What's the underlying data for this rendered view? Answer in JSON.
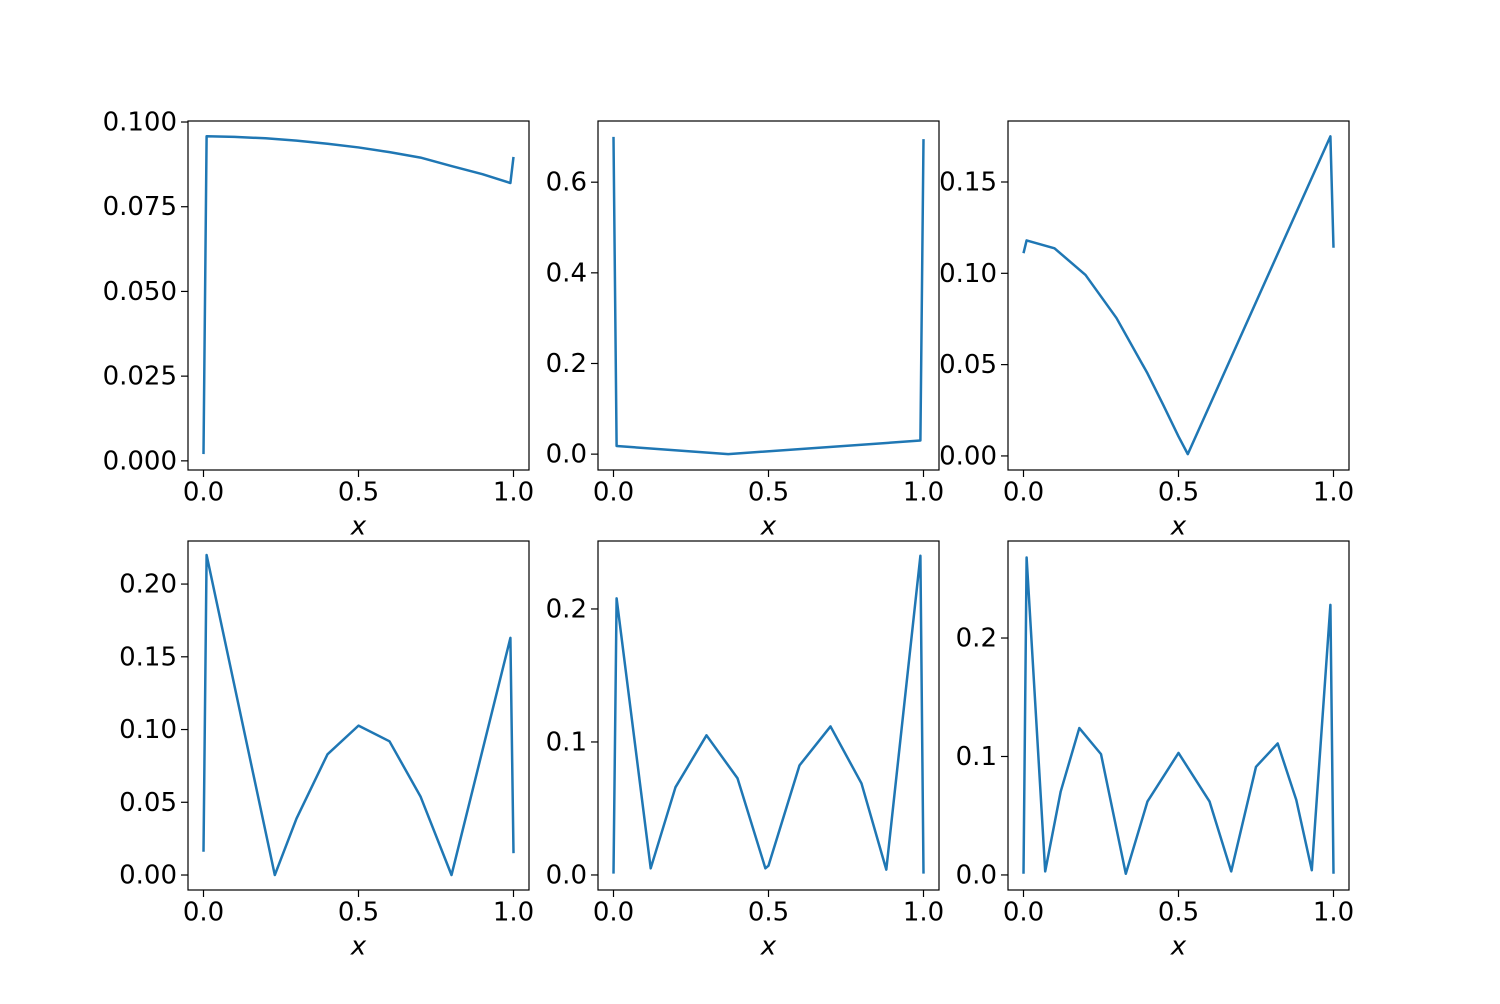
{
  "chart_data": [
    {
      "type": "line",
      "xlabel": "x",
      "color": "#1f77b4",
      "x": [
        0,
        0.01,
        0.1,
        0.2,
        0.3,
        0.4,
        0.5,
        0.6,
        0.7,
        0.8,
        0.9,
        0.99,
        1.0
      ],
      "values": [
        0.002,
        0.0958,
        0.0956,
        0.0952,
        0.0945,
        0.0936,
        0.0925,
        0.0911,
        0.0895,
        0.087,
        0.0846,
        0.082,
        0.0897
      ],
      "xlim": [
        -0.05,
        1.05
      ],
      "ylim": [
        -0.0027,
        0.1003
      ],
      "xticks": [
        {
          "value": 0,
          "label": "0.0"
        },
        {
          "value": 0.5,
          "label": "0.5"
        },
        {
          "value": 1,
          "label": "1.0"
        }
      ],
      "yticks": [
        {
          "value": 0,
          "label": "0.000"
        },
        {
          "value": 0.025,
          "label": "0.025"
        },
        {
          "value": 0.05,
          "label": "0.050"
        },
        {
          "value": 0.075,
          "label": "0.075"
        },
        {
          "value": 0.1,
          "label": "0.100"
        }
      ]
    },
    {
      "type": "line",
      "xlabel": "x",
      "color": "#1f77b4",
      "x": [
        0,
        0.01,
        0.37,
        0.99,
        1.0
      ],
      "values": [
        0.7,
        0.018,
        0.0,
        0.03,
        0.695
      ],
      "xlim": [
        -0.05,
        1.05
      ],
      "ylim": [
        -0.035,
        0.735
      ],
      "xticks": [
        {
          "value": 0,
          "label": "0.0"
        },
        {
          "value": 0.5,
          "label": "0.5"
        },
        {
          "value": 1,
          "label": "1.0"
        }
      ],
      "yticks": [
        {
          "value": 0,
          "label": "0.0"
        },
        0.2,
        0.4,
        0.6
      ]
    },
    {
      "type": "line",
      "xlabel": "x",
      "color": "#1f77b4",
      "x": [
        0,
        0.01,
        0.1,
        0.2,
        0.3,
        0.4,
        0.45,
        0.5,
        0.53,
        0.99,
        1.0
      ],
      "values": [
        0.111,
        0.118,
        0.1137,
        0.0991,
        0.0755,
        0.0452,
        0.0282,
        0.0107,
        0.001,
        0.175,
        0.114
      ],
      "xlim": [
        -0.05,
        1.05
      ],
      "ylim": [
        -0.0077,
        0.1834
      ],
      "xticks": [
        {
          "value": 0,
          "label": "0.0"
        },
        {
          "value": 0.5,
          "label": "0.5"
        },
        {
          "value": 1,
          "label": "1.0"
        }
      ],
      "yticks": [
        {
          "value": 0,
          "label": "0.00"
        },
        0.05,
        {
          "value": 0.1,
          "label": "0.10"
        },
        0.15
      ]
    },
    {
      "type": "line",
      "xlabel": "x",
      "color": "#1f77b4",
      "x": [
        0,
        0.01,
        0.23,
        0.3,
        0.4,
        0.5,
        0.6,
        0.7,
        0.8,
        0.99,
        1.0
      ],
      "values": [
        0.016,
        0.22,
        0.0,
        0.0388,
        0.083,
        0.1027,
        0.0919,
        0.054,
        0.0,
        0.163,
        0.015
      ],
      "xlim": [
        -0.05,
        1.05
      ],
      "ylim": [
        -0.0103,
        0.2296
      ],
      "xticks": [
        {
          "value": 0,
          "label": "0.0"
        },
        {
          "value": 0.5,
          "label": "0.5"
        },
        {
          "value": 1,
          "label": "1.0"
        }
      ],
      "yticks": [
        {
          "value": 0,
          "label": "0.00"
        },
        0.05,
        {
          "value": 0.1,
          "label": "0.10"
        },
        0.15,
        {
          "value": 0.2,
          "label": "0.20"
        }
      ]
    },
    {
      "type": "line",
      "xlabel": "x",
      "color": "#1f77b4",
      "x": [
        0,
        0.01,
        0.12,
        0.2,
        0.3,
        0.4,
        0.49,
        0.5,
        0.6,
        0.7,
        0.8,
        0.88,
        0.99,
        1.0
      ],
      "values": [
        0.001,
        0.208,
        0.005,
        0.066,
        0.105,
        0.0727,
        0.005,
        0.007,
        0.0824,
        0.1117,
        0.0688,
        0.004,
        0.24,
        0.001
      ],
      "xlim": [
        -0.05,
        1.05
      ],
      "ylim": [
        -0.0113,
        0.2511
      ],
      "xticks": [
        {
          "value": 0,
          "label": "0.0"
        },
        {
          "value": 0.5,
          "label": "0.5"
        },
        {
          "value": 1,
          "label": "1.0"
        }
      ],
      "yticks": [
        {
          "value": 0,
          "label": "0.0"
        },
        0.1,
        0.2
      ]
    },
    {
      "type": "line",
      "xlabel": "x",
      "color": "#1f77b4",
      "x": [
        0,
        0.01,
        0.07,
        0.12,
        0.18,
        0.25,
        0.33,
        0.4,
        0.5,
        0.6,
        0.67,
        0.75,
        0.82,
        0.88,
        0.93,
        0.99,
        1.0
      ],
      "values": [
        0.001,
        0.268,
        0.003,
        0.0704,
        0.124,
        0.102,
        0.001,
        0.0621,
        0.103,
        0.0621,
        0.003,
        0.0913,
        0.111,
        0.0633,
        0.004,
        0.228,
        0.001
      ],
      "xlim": [
        -0.05,
        1.05
      ],
      "ylim": [
        -0.0127,
        0.2819
      ],
      "xticks": [
        {
          "value": 0,
          "label": "0.0"
        },
        {
          "value": 0.5,
          "label": "0.5"
        },
        {
          "value": 1,
          "label": "1.0"
        }
      ],
      "yticks": [
        {
          "value": 0,
          "label": "0.0"
        },
        0.1,
        0.2
      ]
    }
  ]
}
